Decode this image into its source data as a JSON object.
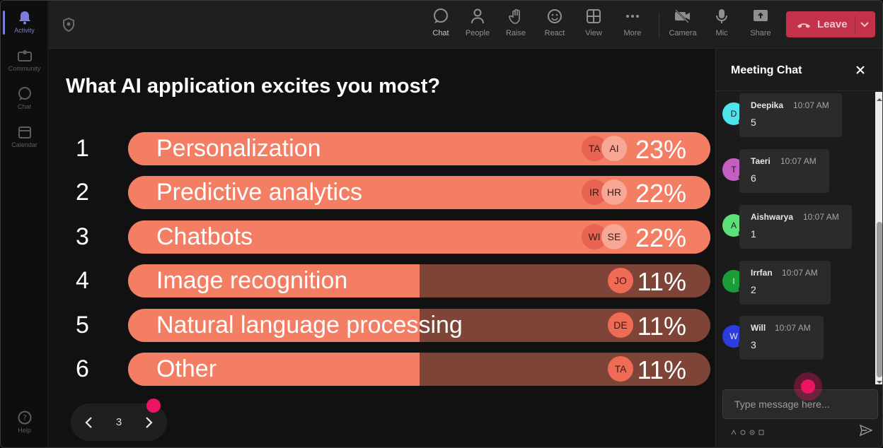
{
  "rail": {
    "items": [
      {
        "label": "Activity",
        "icon": "bell-icon",
        "active": true
      },
      {
        "label": "Community",
        "icon": "community-icon",
        "active": false
      },
      {
        "label": "Chat",
        "icon": "chat-icon",
        "active": false
      },
      {
        "label": "Calendar",
        "icon": "calendar-icon",
        "active": false
      }
    ],
    "help_label": "Help"
  },
  "toolbar": {
    "chat": "Chat",
    "people": "People",
    "raise": "Raise",
    "react": "React",
    "view": "View",
    "more": "More",
    "camera": "Camera",
    "mic": "Mic",
    "share": "Share",
    "leave": "Leave"
  },
  "poll": {
    "question": "What AI application excites you most?",
    "options": [
      {
        "num": "1",
        "label": "Personalization",
        "percent": "23%",
        "fill": 100,
        "avatars": [
          "TA",
          "AI"
        ]
      },
      {
        "num": "2",
        "label": "Predictive analytics",
        "percent": "22%",
        "fill": 100,
        "avatars": [
          "IR",
          "HR"
        ]
      },
      {
        "num": "3",
        "label": "Chatbots",
        "percent": "22%",
        "fill": 100,
        "avatars": [
          "WI",
          "SE"
        ]
      },
      {
        "num": "4",
        "label": "Image recognition",
        "percent": "11%",
        "fill": 50,
        "avatars": [
          "JO"
        ]
      },
      {
        "num": "5",
        "label": "Natural language processing",
        "percent": "11%",
        "fill": 50,
        "avatars": [
          "DE"
        ]
      },
      {
        "num": "6",
        "label": "Other",
        "percent": "11%",
        "fill": 50,
        "avatars": [
          "TA"
        ]
      }
    ]
  },
  "pager": {
    "page": "3"
  },
  "chat": {
    "title": "Meeting Chat",
    "messages": [
      {
        "initial": "D",
        "name": "Deepika",
        "time": "10:07 AM",
        "text": "5",
        "color": "#4fe3ee"
      },
      {
        "initial": "T",
        "name": "Taeri",
        "time": "10:07 AM",
        "text": "6",
        "color": "#c35fc0"
      },
      {
        "initial": "A",
        "name": "Aishwarya",
        "time": "10:07 AM",
        "text": "1",
        "color": "#5de07a"
      },
      {
        "initial": "I",
        "name": "Irrfan",
        "time": "10:07 AM",
        "text": "2",
        "color": "#1a9c36"
      },
      {
        "initial": "W",
        "name": "Will",
        "time": "10:07 AM",
        "text": "3",
        "color": "#2b3de0"
      }
    ],
    "compose_placeholder": "Type message here..."
  },
  "colors": {
    "accent": "#7b7fd6",
    "leave": "#c4314b",
    "bar_fill": "#f47e64",
    "bar_track": "#7f4438",
    "cursor": "#ee1464"
  }
}
